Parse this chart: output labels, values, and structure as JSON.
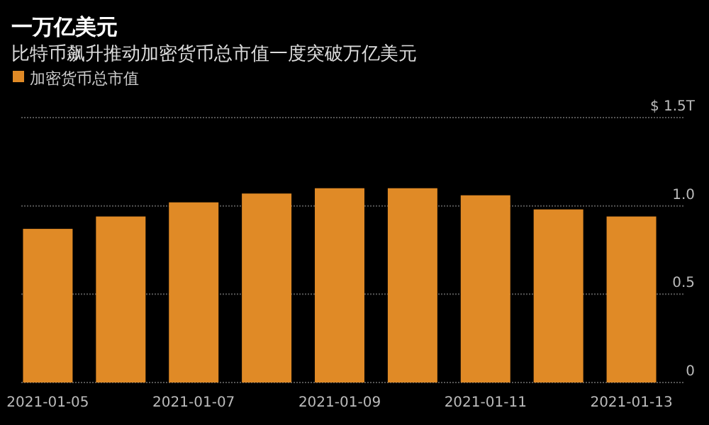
{
  "chart_data": {
    "type": "bar",
    "title": "一万亿美元",
    "subtitle": "比特币飙升推动加密货币总市值一度突破万亿美元",
    "categories": [
      "2021-01-05",
      null,
      "2021-01-07",
      null,
      "2021-01-09",
      null,
      "2021-01-11",
      null,
      "2021-01-13"
    ],
    "series": [
      {
        "name": "加密货币总市值",
        "color": "#e08a26",
        "values": [
          0.87,
          0.94,
          1.02,
          1.07,
          1.1,
          1.1,
          1.06,
          0.98,
          0.94
        ]
      }
    ],
    "ylim": [
      0,
      1.5
    ],
    "yticks": [
      0,
      {
        "value": 0.5,
        "label": "0.5"
      },
      {
        "value": 1,
        "label": "1.0"
      },
      {
        "value": 1.5,
        "label": "$ 1.5T"
      }
    ],
    "grid": "y",
    "legend": "top left"
  }
}
